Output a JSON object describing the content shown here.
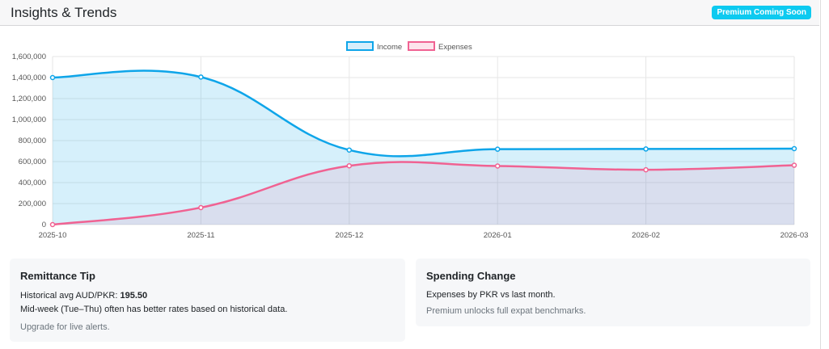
{
  "header": {
    "title": "Insights & Trends",
    "badge": "Premium Coming Soon"
  },
  "chart_data": {
    "type": "area",
    "x": [
      "2025-10",
      "2025-11",
      "2025-12",
      "2026-01",
      "2026-02",
      "2026-03"
    ],
    "series": [
      {
        "name": "Income",
        "values": [
          1400000,
          1405000,
          710000,
          718000,
          720000,
          723000
        ],
        "color": "#0ea5e9"
      },
      {
        "name": "Expenses",
        "values": [
          0,
          162000,
          560000,
          558000,
          522000,
          565000
        ],
        "color": "#f06292"
      }
    ],
    "ylim": [
      0,
      1600000
    ],
    "yticks": [
      "0",
      "200,000",
      "400,000",
      "600,000",
      "800,000",
      "1,000,000",
      "1,200,000",
      "1,400,000",
      "1,600,000"
    ],
    "grid": true,
    "legend": "top-center"
  },
  "cards": {
    "tip": {
      "title": "Remittance Tip",
      "avg_label": "Historical avg AUD/PKR: ",
      "avg_value": "195.50",
      "line2": "Mid-week (Tue–Thu) often has better rates based on historical data.",
      "line3": "Upgrade for live alerts."
    },
    "spending": {
      "title": "Spending Change",
      "line1": "Expenses by PKR vs last month.",
      "line2": "Premium unlocks full expat benchmarks."
    }
  }
}
